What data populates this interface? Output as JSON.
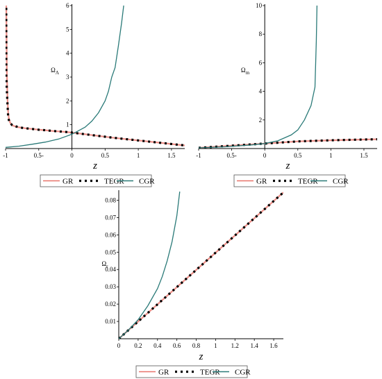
{
  "chart_data": [
    {
      "type": "line",
      "ylabel": "Ω_Λ",
      "xlabel": "z",
      "xlim": [
        -1,
        1.7
      ],
      "ylim": [
        0,
        6
      ],
      "x_ticks": [
        "-1",
        "0.5-",
        "0",
        "0.5",
        "1",
        "1.5"
      ],
      "x_tick_values": [
        -1,
        -0.5,
        0,
        0.5,
        1,
        1.5
      ],
      "y_ticks": [
        "1",
        "2",
        "3",
        "4",
        "5",
        "6"
      ],
      "y_tick_values": [
        1,
        2,
        3,
        4,
        5,
        6
      ],
      "legend": [
        "GR",
        "TEGR",
        "CGR"
      ],
      "series": [
        {
          "name": "GR",
          "color": "#e8736a",
          "style": "solid",
          "x": [
            -0.99,
            -0.98,
            -0.97,
            -0.96,
            -0.95,
            -0.93,
            -0.9,
            -0.85,
            -0.8,
            -0.7,
            -0.6,
            -0.5,
            -0.4,
            -0.3,
            -0.2,
            -0.1,
            0,
            0.2,
            0.4,
            0.6,
            0.8,
            1.0,
            1.2,
            1.4,
            1.6,
            1.7
          ],
          "y": [
            6,
            3.2,
            2.0,
            1.5,
            1.25,
            1.08,
            0.98,
            0.92,
            0.89,
            0.85,
            0.82,
            0.79,
            0.77,
            0.74,
            0.72,
            0.7,
            0.67,
            0.6,
            0.53,
            0.46,
            0.4,
            0.34,
            0.28,
            0.22,
            0.16,
            0.13
          ]
        },
        {
          "name": "TEGR",
          "color": "#000000",
          "style": "dotted",
          "x": [
            -0.99,
            -0.99,
            -0.99,
            -0.99,
            -0.99,
            -0.98,
            -0.97,
            -0.96,
            -0.94,
            -0.9,
            -0.8,
            -0.7,
            -0.6,
            -0.5,
            -0.4,
            -0.3,
            -0.2,
            -0.1,
            0,
            0.2,
            0.4,
            0.6,
            0.8,
            1.0,
            1.2,
            1.4,
            1.6,
            1.7
          ],
          "y": [
            5.9,
            5.2,
            4.5,
            3.8,
            3.1,
            2.4,
            1.8,
            1.3,
            1.1,
            0.98,
            0.89,
            0.85,
            0.82,
            0.79,
            0.77,
            0.74,
            0.72,
            0.7,
            0.67,
            0.6,
            0.53,
            0.46,
            0.4,
            0.34,
            0.28,
            0.22,
            0.16,
            0.13
          ]
        },
        {
          "name": "CGR",
          "color": "#2a7a78",
          "style": "solid",
          "x": [
            -1,
            -0.8,
            -0.6,
            -0.4,
            -0.2,
            0,
            0.2,
            0.3,
            0.4,
            0.5,
            0.55,
            0.6,
            0.65,
            0.7,
            0.75,
            0.78
          ],
          "y": [
            0.05,
            0.1,
            0.18,
            0.27,
            0.4,
            0.6,
            0.9,
            1.15,
            1.5,
            2.0,
            2.4,
            3.0,
            3.4,
            4.3,
            5.3,
            6.0
          ]
        }
      ]
    },
    {
      "type": "line",
      "ylabel": "Ω_m",
      "xlabel": "z",
      "xlim": [
        -1,
        1.7
      ],
      "ylim": [
        0,
        10
      ],
      "x_ticks": [
        "-1",
        "0.5-",
        "0",
        "0.5",
        "1",
        "1.5"
      ],
      "x_tick_values": [
        -1,
        -0.5,
        0,
        0.5,
        1,
        1.5
      ],
      "y_ticks": [
        "2",
        "4",
        "6",
        "8",
        "10"
      ],
      "y_tick_values": [
        2,
        4,
        6,
        8,
        10
      ],
      "legend": [
        "GR",
        "TEGR",
        "CGR"
      ],
      "series": [
        {
          "name": "GR",
          "color": "#e8736a",
          "style": "solid",
          "x": [
            -1,
            -0.5,
            0,
            0.5,
            1,
            1.5,
            1.7
          ],
          "y": [
            0.05,
            0.2,
            0.35,
            0.5,
            0.58,
            0.63,
            0.65
          ]
        },
        {
          "name": "TEGR",
          "color": "#000000",
          "style": "dotted",
          "x": [
            -1,
            -0.5,
            0,
            0.5,
            1,
            1.5,
            1.7
          ],
          "y": [
            0.05,
            0.2,
            0.35,
            0.5,
            0.58,
            0.63,
            0.65
          ]
        },
        {
          "name": "CGR",
          "color": "#2a7a78",
          "style": "solid",
          "x": [
            -1,
            -0.6,
            -0.2,
            0,
            0.2,
            0.4,
            0.5,
            0.6,
            0.7,
            0.76,
            0.78,
            0.79
          ],
          "y": [
            0.05,
            0.12,
            0.25,
            0.35,
            0.55,
            0.95,
            1.3,
            2.0,
            3.0,
            4.3,
            7.5,
            10
          ]
        }
      ]
    },
    {
      "type": "line",
      "ylabel": "Ω_r",
      "xlabel": "z",
      "xlim": [
        0,
        1.7
      ],
      "ylim": [
        0,
        0.085
      ],
      "x_ticks": [
        "0",
        "0.2",
        "0.4",
        "0.6",
        "0.8",
        "1",
        "1.2",
        "1.4",
        "1.6"
      ],
      "x_tick_values": [
        0,
        0.2,
        0.4,
        0.6,
        0.8,
        1,
        1.2,
        1.4,
        1.6
      ],
      "y_ticks": [
        "0.01",
        "0.02",
        "0.03",
        "0.04",
        "0.05",
        "0.06",
        "0.07",
        "0.08"
      ],
      "y_tick_values": [
        0.01,
        0.02,
        0.03,
        0.04,
        0.05,
        0.06,
        0.07,
        0.08
      ],
      "legend": [
        "GR",
        "TEGR",
        "CGR"
      ],
      "series": [
        {
          "name": "GR",
          "color": "#e8736a",
          "style": "solid",
          "x": [
            0,
            1.7
          ],
          "y": [
            0,
            0.0845
          ]
        },
        {
          "name": "TEGR",
          "color": "#000000",
          "style": "dotted",
          "x": [
            0,
            1.7
          ],
          "y": [
            0,
            0.0845
          ]
        },
        {
          "name": "CGR",
          "color": "#2a7a78",
          "style": "solid",
          "x": [
            0,
            0.1,
            0.2,
            0.3,
            0.4,
            0.45,
            0.5,
            0.55,
            0.6,
            0.63
          ],
          "y": [
            0,
            0.005,
            0.011,
            0.019,
            0.029,
            0.036,
            0.045,
            0.056,
            0.071,
            0.085
          ]
        }
      ]
    }
  ]
}
